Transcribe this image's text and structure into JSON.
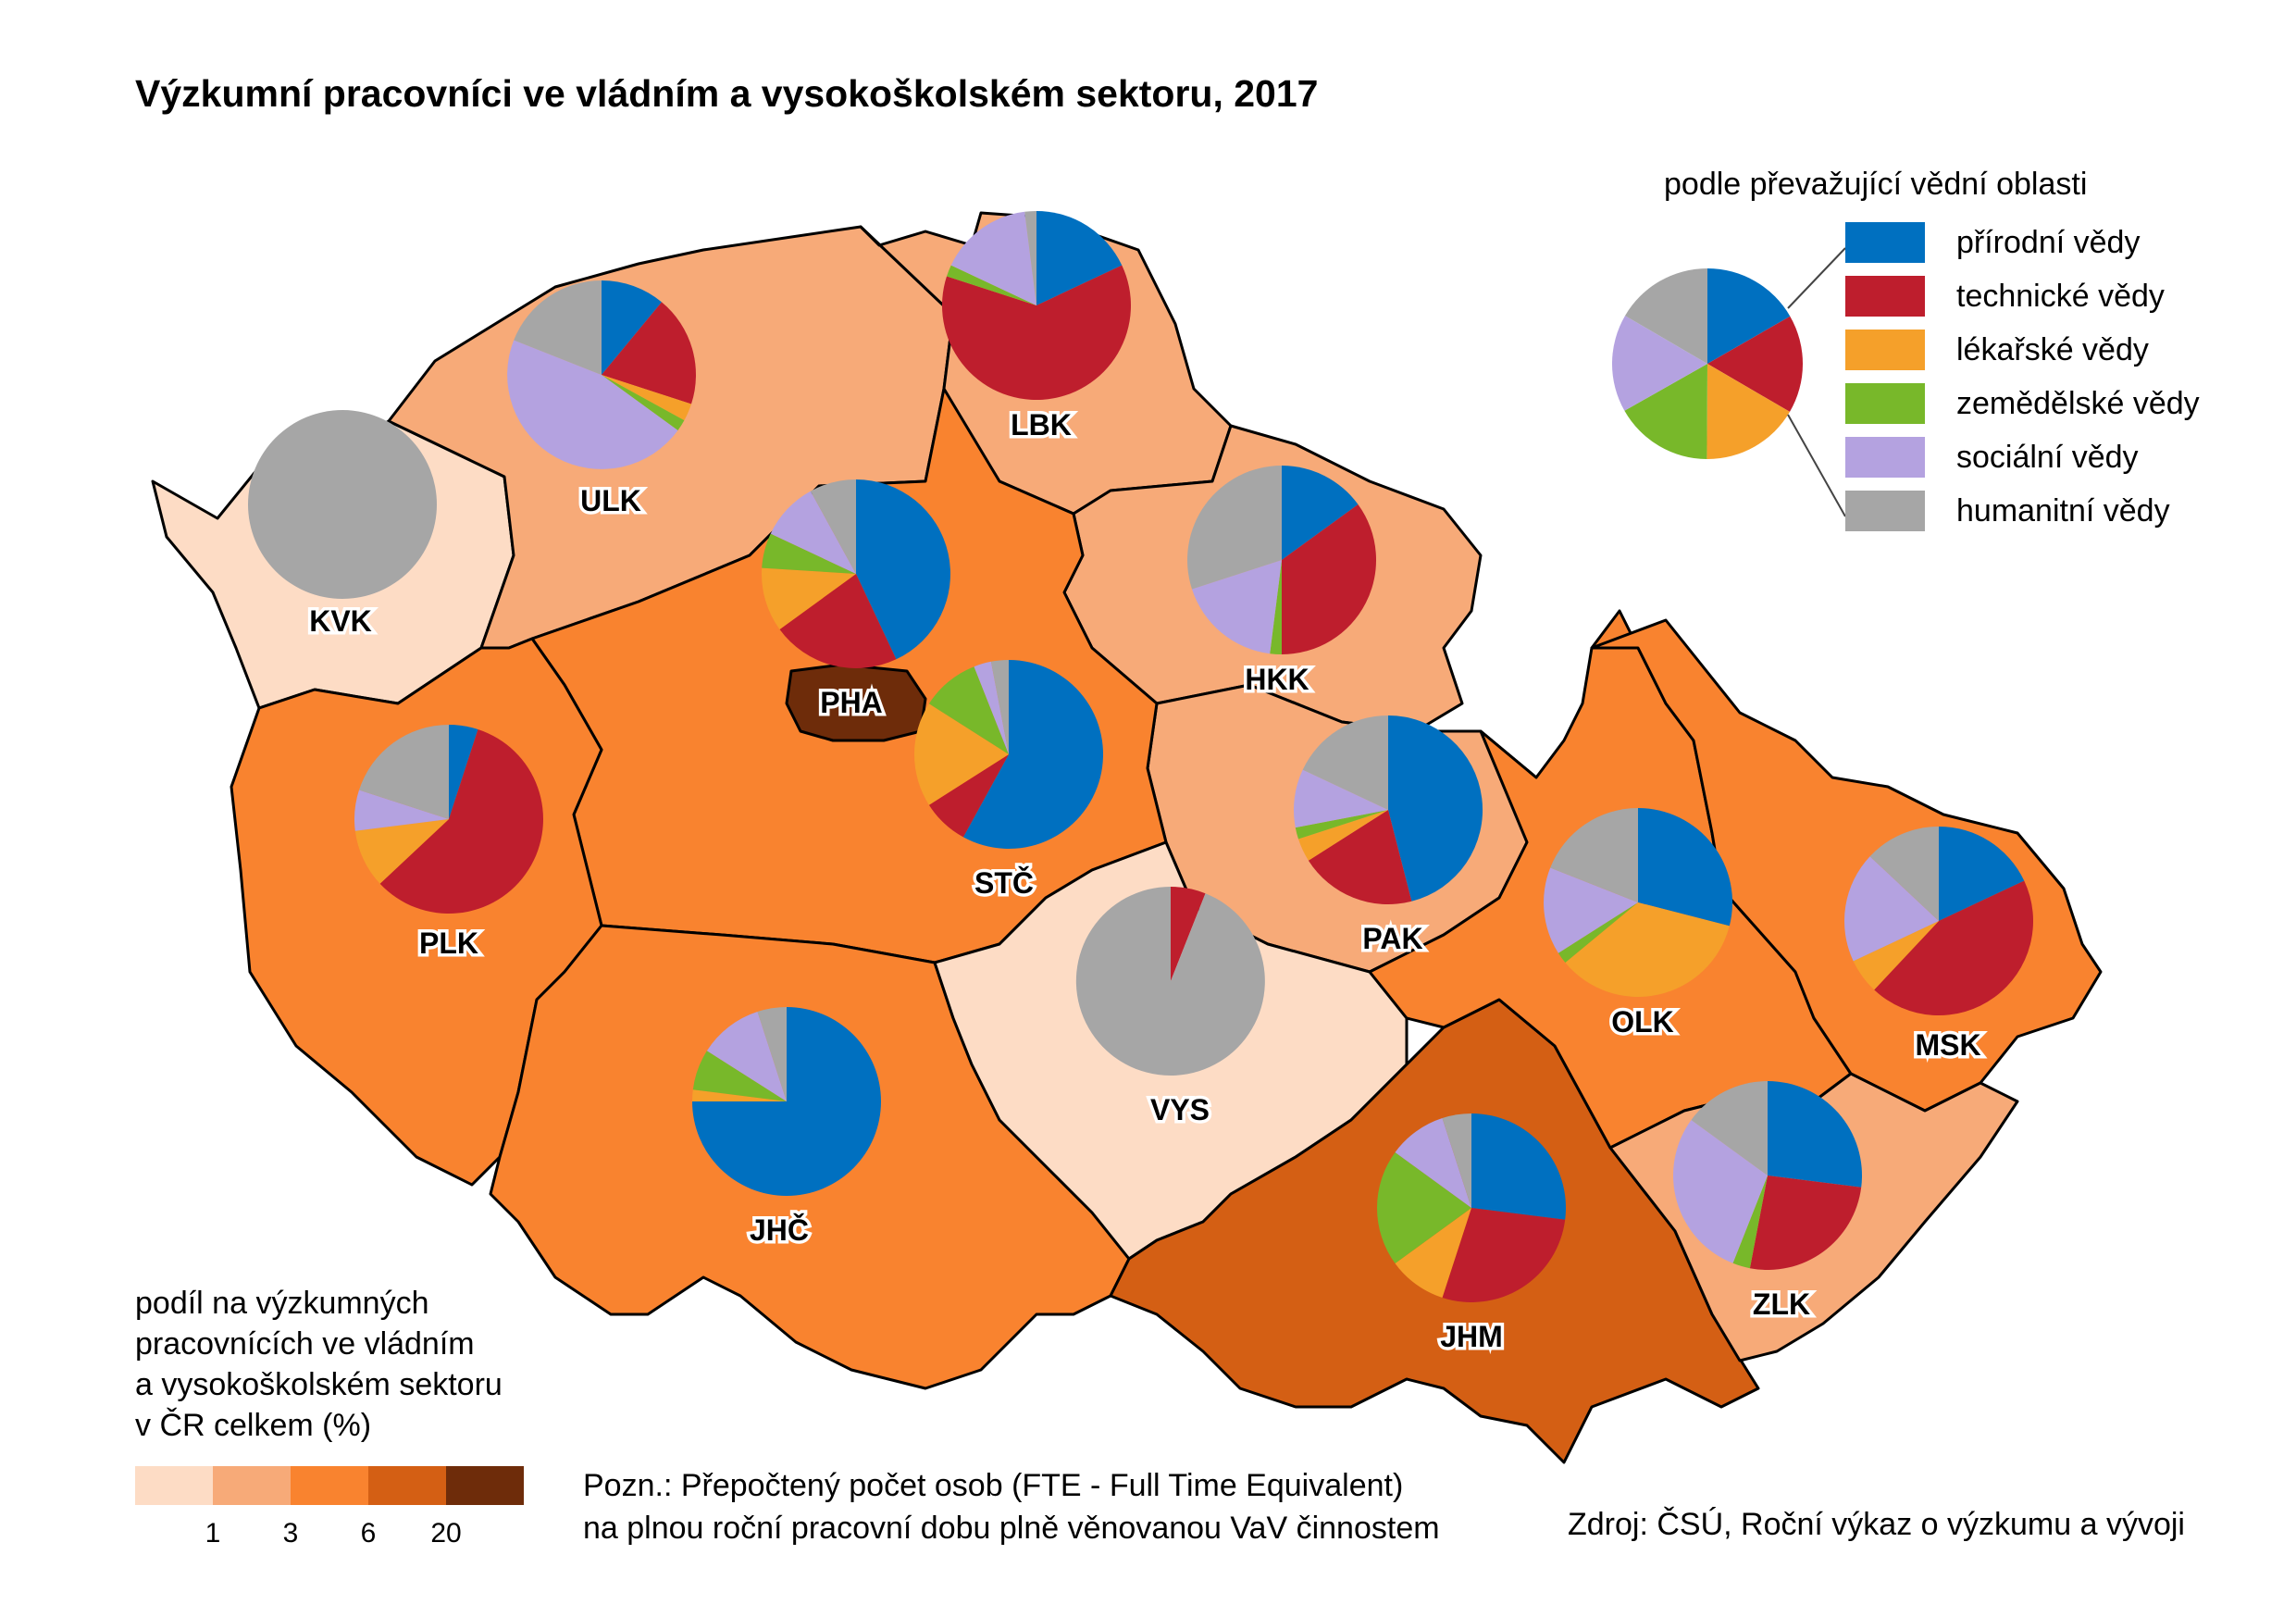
{
  "title": "Výzkumní pracovníci ve vládním a vysokoškolském sektoru, 2017",
  "pie_legend": {
    "title": "podle převažující vědní oblasti",
    "items": [
      {
        "label": "přírodní vědy",
        "color": "#0070c0"
      },
      {
        "label": "technické vědy",
        "color": "#be1e2d"
      },
      {
        "label": "lékařské vědy",
        "color": "#f5a02a"
      },
      {
        "label": "zemědělské vědy",
        "color": "#78b82a"
      },
      {
        "label": "sociální vědy",
        "color": "#b4a2e0"
      },
      {
        "label": "humanitní vědy",
        "color": "#a6a6a6"
      }
    ],
    "sample_shares": [
      0.167,
      0.167,
      0.167,
      0.167,
      0.166,
      0.166
    ]
  },
  "choropleth_legend": {
    "title": "podíl na výzkumných\npracovnících ve vládním\na vysokoškolském sektoru\nv ČR celkem (%)",
    "colors": [
      "#fddcc5",
      "#f7aa78",
      "#f9832f",
      "#d45f14",
      "#6e2c0a"
    ],
    "thresholds": [
      "1",
      "3",
      "6",
      "20"
    ]
  },
  "regions": [
    {
      "code": "PHA",
      "class": 4,
      "shares": [
        0.43,
        0.22,
        0.11,
        0.06,
        0.1,
        0.08
      ]
    },
    {
      "code": "STČ",
      "class": 2,
      "shares": [
        0.58,
        0.08,
        0.18,
        0.1,
        0.03,
        0.03
      ]
    },
    {
      "code": "JHČ",
      "class": 2,
      "shares": [
        0.75,
        0.0,
        0.02,
        0.07,
        0.11,
        0.05
      ]
    },
    {
      "code": "PLK",
      "class": 2,
      "shares": [
        0.05,
        0.58,
        0.1,
        0.0,
        0.07,
        0.2
      ]
    },
    {
      "code": "KVK",
      "class": 0,
      "shares": [
        0.0,
        0.0,
        0.0,
        0.0,
        0.0,
        1.0
      ]
    },
    {
      "code": "ULK",
      "class": 1,
      "shares": [
        0.11,
        0.19,
        0.03,
        0.02,
        0.46,
        0.19
      ]
    },
    {
      "code": "LBK",
      "class": 1,
      "shares": [
        0.18,
        0.62,
        0.0,
        0.02,
        0.16,
        0.02
      ]
    },
    {
      "code": "HKK",
      "class": 1,
      "shares": [
        0.15,
        0.35,
        0.0,
        0.02,
        0.18,
        0.3
      ]
    },
    {
      "code": "PAK",
      "class": 1,
      "shares": [
        0.46,
        0.2,
        0.04,
        0.02,
        0.1,
        0.18
      ]
    },
    {
      "code": "VYS",
      "class": 0,
      "shares": [
        0.0,
        0.06,
        0.0,
        0.0,
        0.0,
        0.94
      ]
    },
    {
      "code": "JHM",
      "class": 3,
      "shares": [
        0.27,
        0.28,
        0.1,
        0.2,
        0.1,
        0.05
      ]
    },
    {
      "code": "OLK",
      "class": 2,
      "shares": [
        0.29,
        0.0,
        0.35,
        0.02,
        0.15,
        0.19
      ]
    },
    {
      "code": "MSK",
      "class": 2,
      "shares": [
        0.18,
        0.44,
        0.06,
        0.0,
        0.19,
        0.13
      ]
    },
    {
      "code": "ZLK",
      "class": 1,
      "shares": [
        0.27,
        0.26,
        0.0,
        0.03,
        0.29,
        0.15
      ]
    }
  ],
  "note": "Pozn.: Přepočtený počet osob (FTE - Full Time Equivalent)\nna plnou roční pracovní dobu plně věnovanou VaV činnostem",
  "source": "Zdroj: ČSÚ, Roční výkaz o výzkumu a vývoji"
}
